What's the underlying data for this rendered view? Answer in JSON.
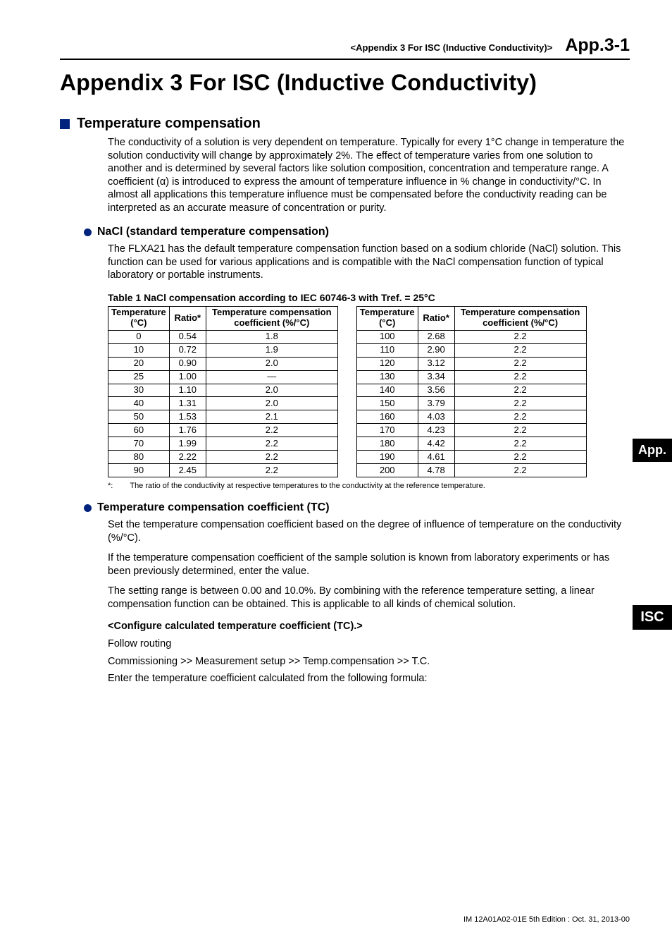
{
  "header": {
    "appendix_label": "<Appendix 3  For ISC (Inductive Conductivity)>",
    "page_number": "App.3-1"
  },
  "title": "Appendix 3   For ISC (Inductive Conductivity)",
  "section1": {
    "heading": "Temperature compensation",
    "para": "The conductivity of a solution is very dependent on temperature. Typically for every 1°C change in temperature the solution conductivity will change by approximately 2%. The effect of temperature varies from one solution to another and is determined by several factors like solution composition, concentration and temperature range. A coefficient (α) is introduced to express the amount of temperature influence in % change in conductivity/°C. In almost all applications this temperature influence must be compensated before the conductivity reading can be interpreted as an accurate measure of concentration or purity."
  },
  "section2": {
    "heading": "NaCl (standard temperature compensation)",
    "para": "The FLXA21 has the default temperature compensation function based on a sodium chloride (NaCl) solution. This function can be used for various applications and is compatible with the NaCl compensation function of typical laboratory or portable instruments."
  },
  "table": {
    "caption": "Table 1 NaCl compensation according to IEC 60746-3 with Tref. = 25°C",
    "cols": {
      "temp": "Temperature (°C)",
      "ratio": "Ratio*",
      "coef": "Temperature compensa­tion coefficient (%/°C)"
    },
    "left_rows": [
      {
        "temp": "0",
        "ratio": "0.54",
        "coef": "1.8"
      },
      {
        "temp": "10",
        "ratio": "0.72",
        "coef": "1.9"
      },
      {
        "temp": "20",
        "ratio": "0.90",
        "coef": "2.0"
      },
      {
        "temp": "25",
        "ratio": "1.00",
        "coef": "—"
      },
      {
        "temp": "30",
        "ratio": "1.10",
        "coef": "2.0"
      },
      {
        "temp": "40",
        "ratio": "1.31",
        "coef": "2.0"
      },
      {
        "temp": "50",
        "ratio": "1.53",
        "coef": "2.1"
      },
      {
        "temp": "60",
        "ratio": "1.76",
        "coef": "2.2"
      },
      {
        "temp": "70",
        "ratio": "1.99",
        "coef": "2.2"
      },
      {
        "temp": "80",
        "ratio": "2.22",
        "coef": "2.2"
      },
      {
        "temp": "90",
        "ratio": "2.45",
        "coef": "2.2"
      }
    ],
    "right_rows": [
      {
        "temp": "100",
        "ratio": "2.68",
        "coef": "2.2"
      },
      {
        "temp": "110",
        "ratio": "2.90",
        "coef": "2.2"
      },
      {
        "temp": "120",
        "ratio": "3.12",
        "coef": "2.2"
      },
      {
        "temp": "130",
        "ratio": "3.34",
        "coef": "2.2"
      },
      {
        "temp": "140",
        "ratio": "3.56",
        "coef": "2.2"
      },
      {
        "temp": "150",
        "ratio": "3.79",
        "coef": "2.2"
      },
      {
        "temp": "160",
        "ratio": "4.03",
        "coef": "2.2"
      },
      {
        "temp": "170",
        "ratio": "4.23",
        "coef": "2.2"
      },
      {
        "temp": "180",
        "ratio": "4.42",
        "coef": "2.2"
      },
      {
        "temp": "190",
        "ratio": "4.61",
        "coef": "2.2"
      },
      {
        "temp": "200",
        "ratio": "4.78",
        "coef": "2.2"
      }
    ],
    "footnote_mark": "*:",
    "footnote": "The ratio of the conductivity at respective temperatures to the conductivity at the reference temperature."
  },
  "section3": {
    "heading": "Temperature compensation coefficient (TC)",
    "p1": "Set the temperature compensation coefficient based on the degree of influence of temperature on the conductivity (%/°C).",
    "p2": "If the temperature compensation coefficient of the sample solution is known from laboratory experiments or has been previously determined, enter the value.",
    "p3": "The setting range is between 0.00 and 10.0%. By combining with the reference temperature setting, a linear compensation function can be obtained. This is applicable to all kinds of chemical solution.",
    "configure_heading": "<Configure calculated temperature coefficient (TC).>",
    "p4": "Follow routing",
    "p5": "Commissioning >> Measurement setup >> Temp.compensation >> T.C.",
    "p6": "Enter the temperature coefficient calculated from the following formula:"
  },
  "side_tabs": {
    "app": "App.",
    "isc": "ISC"
  },
  "footer": "IM 12A01A02-01E    5th Edition : Oct. 31, 2013-00",
  "style": {
    "accent_color": "#00247d",
    "text_color": "#000000",
    "background": "#ffffff",
    "tab_bg": "#000000",
    "tab_fg": "#ffffff"
  }
}
